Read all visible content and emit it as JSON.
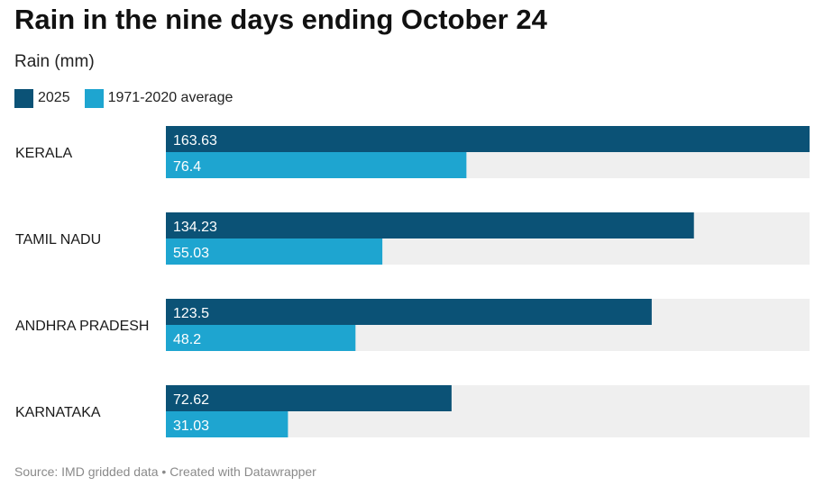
{
  "header": {
    "title": "Rain in the nine days ending October 24",
    "subtitle": "Rain (mm)"
  },
  "legend": [
    {
      "label": "2025",
      "color": "#0b5276"
    },
    {
      "label": "1971-2020 average",
      "color": "#1ea5d0"
    }
  ],
  "colors": {
    "track": "#efefef",
    "bar_label": "#ffffff",
    "category_label": "#1a1a1a"
  },
  "chart_data": {
    "type": "bar",
    "orientation": "horizontal",
    "title": "Rain in the nine days ending October 24",
    "subtitle": "Rain (mm)",
    "categories": [
      "KERALA",
      "TAMIL NADU",
      "ANDHRA PRADESH",
      "KARNATAKA"
    ],
    "series": [
      {
        "name": "2025",
        "color": "#0b5276",
        "values": [
          163.63,
          134.23,
          123.5,
          72.62
        ],
        "labels": [
          "163.63",
          "134.23",
          "123.5",
          "72.62"
        ]
      },
      {
        "name": "1971-2020 average",
        "color": "#1ea5d0",
        "values": [
          76.4,
          55.03,
          48.2,
          31.03
        ],
        "labels": [
          "76.4",
          "55.03",
          "48.2",
          "31.03"
        ]
      }
    ],
    "xlim": [
      0,
      163.63
    ],
    "grid": false,
    "legend_position": "top-left"
  },
  "footer": {
    "text": "Source: IMD gridded data • Created with Datawrapper"
  }
}
